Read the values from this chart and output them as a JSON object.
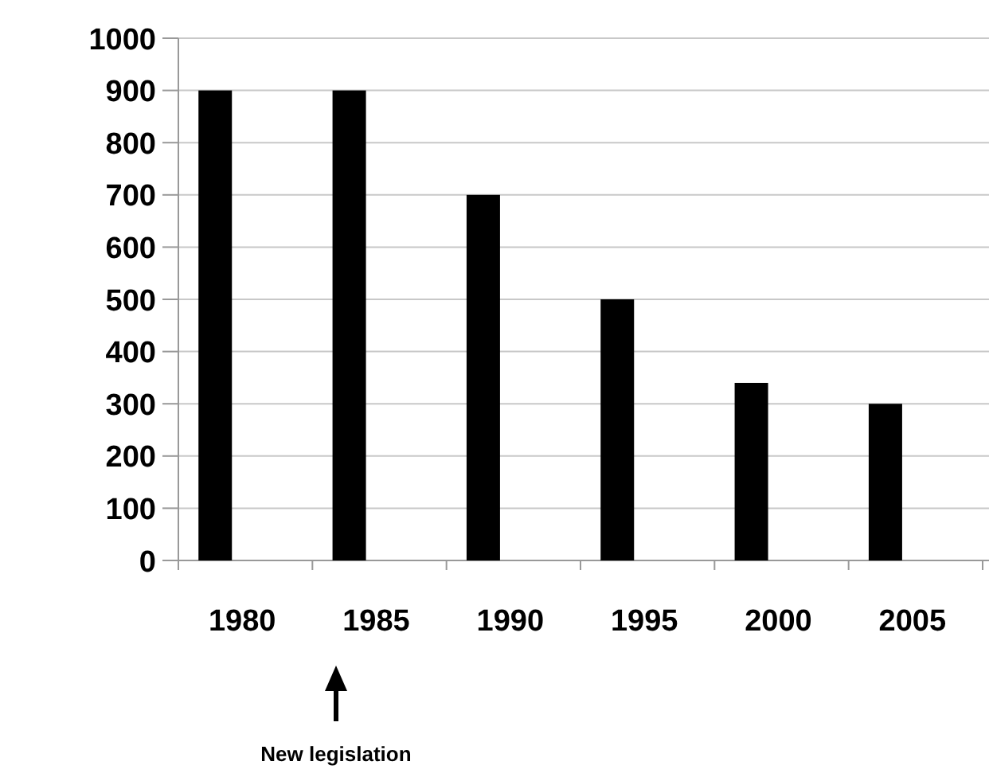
{
  "chart_data": {
    "type": "bar",
    "categories": [
      "1980",
      "1985",
      "1990",
      "1995",
      "2000",
      "2005"
    ],
    "values": [
      900,
      900,
      700,
      500,
      340,
      300
    ],
    "color": "#000000",
    "ylim": [
      0,
      1000
    ],
    "yticks": [
      0,
      100,
      200,
      300,
      400,
      500,
      600,
      700,
      800,
      900,
      1000
    ],
    "grid": "y",
    "annotations": [
      "New legislation"
    ]
  }
}
